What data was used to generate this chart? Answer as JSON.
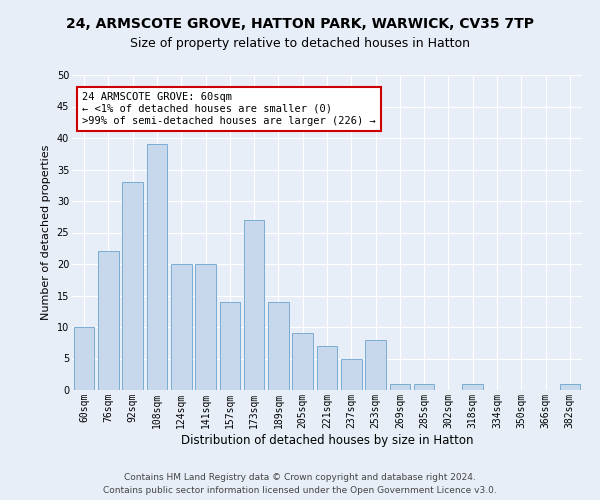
{
  "title_line1": "24, ARMSCOTE GROVE, HATTON PARK, WARWICK, CV35 7TP",
  "title_line2": "Size of property relative to detached houses in Hatton",
  "xlabel": "Distribution of detached houses by size in Hatton",
  "ylabel": "Number of detached properties",
  "categories": [
    "60sqm",
    "76sqm",
    "92sqm",
    "108sqm",
    "124sqm",
    "141sqm",
    "157sqm",
    "173sqm",
    "189sqm",
    "205sqm",
    "221sqm",
    "237sqm",
    "253sqm",
    "269sqm",
    "285sqm",
    "302sqm",
    "318sqm",
    "334sqm",
    "350sqm",
    "366sqm",
    "382sqm"
  ],
  "values": [
    10,
    22,
    33,
    39,
    20,
    20,
    14,
    27,
    14,
    9,
    7,
    5,
    8,
    1,
    1,
    0,
    1,
    0,
    0,
    0,
    1
  ],
  "bar_color": "#c8d8ec",
  "bar_edge_color": "#7aadd4",
  "annotation_box_text": "24 ARMSCOTE GROVE: 60sqm\n← <1% of detached houses are smaller (0)\n>99% of semi-detached houses are larger (226) →",
  "annotation_box_color": "#ffffff",
  "annotation_box_edge_color": "#cc0000",
  "ylim": [
    0,
    50
  ],
  "yticks": [
    0,
    5,
    10,
    15,
    20,
    25,
    30,
    35,
    40,
    45,
    50
  ],
  "background_color": "#e8eef8",
  "footer_line1": "Contains HM Land Registry data © Crown copyright and database right 2024.",
  "footer_line2": "Contains public sector information licensed under the Open Government Licence v3.0.",
  "title_fontsize": 10,
  "subtitle_fontsize": 9,
  "xlabel_fontsize": 8.5,
  "ylabel_fontsize": 8,
  "tick_fontsize": 7,
  "annotation_fontsize": 7.5,
  "footer_fontsize": 6.5
}
